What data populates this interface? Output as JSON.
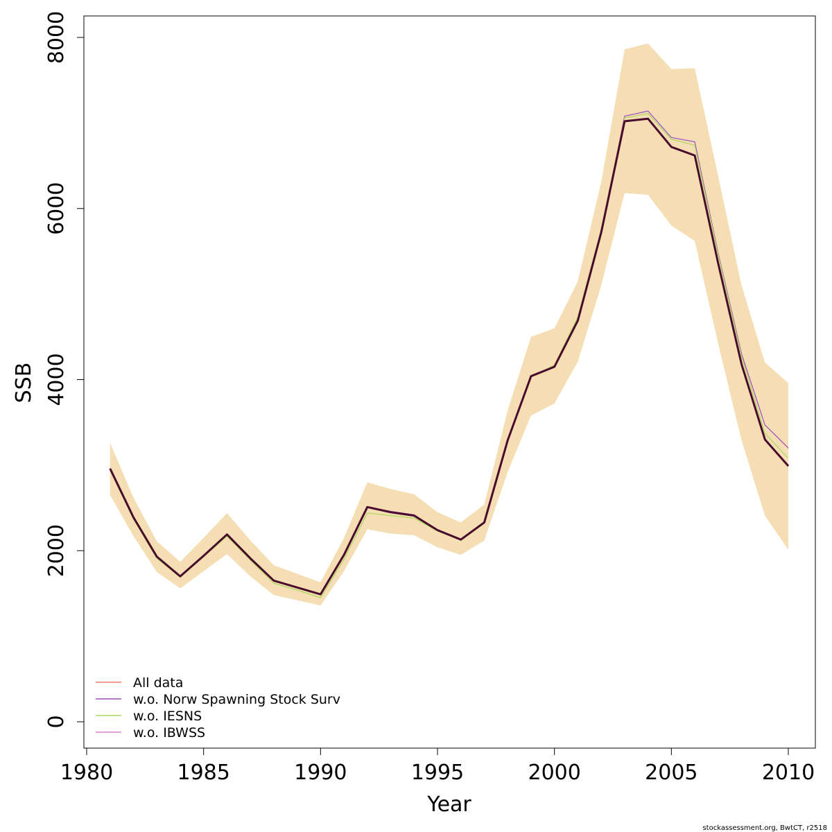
{
  "chart_data": {
    "type": "line",
    "xlabel": "Year",
    "ylabel": "SSB",
    "xlim": [
      1980,
      2010
    ],
    "ylim": [
      0,
      8000
    ],
    "x_ticks": [
      1980,
      1985,
      1990,
      1995,
      2000,
      2005,
      2010
    ],
    "y_ticks": [
      0,
      2000,
      4000,
      6000,
      8000
    ],
    "grid": false,
    "legend_position": "bottom-left",
    "x": [
      1981,
      1982,
      1983,
      1984,
      1985,
      1986,
      1987,
      1988,
      1989,
      1990,
      1991,
      1992,
      1993,
      1994,
      1995,
      1996,
      1997,
      1998,
      1999,
      2000,
      2001,
      2002,
      2003,
      2004,
      2005,
      2006,
      2007,
      2008,
      2009,
      2010
    ],
    "confidence_band": {
      "color": "#f5deb3",
      "lower": [
        2650,
        2170,
        1750,
        1560,
        1760,
        1960,
        1700,
        1480,
        1420,
        1360,
        1760,
        2250,
        2200,
        2180,
        2040,
        1950,
        2120,
        2920,
        3580,
        3720,
        4210,
        5100,
        6180,
        6160,
        5800,
        5620,
        4420,
        3290,
        2410,
        2010
      ],
      "upper": [
        3260,
        2620,
        2110,
        1870,
        2150,
        2440,
        2120,
        1830,
        1730,
        1630,
        2150,
        2800,
        2720,
        2660,
        2450,
        2330,
        2540,
        3640,
        4500,
        4600,
        5150,
        6310,
        7860,
        7930,
        7630,
        7640,
        6380,
        5100,
        4200,
        3960
      ]
    },
    "series": [
      {
        "name": "w.o. Norw Spawning Stock Surv",
        "color": "#9b4dc4",
        "values": [
          2960,
          2390,
          1930,
          1700,
          1940,
          2190,
          1910,
          1650,
          1570,
          1490,
          1950,
          2510,
          2460,
          2420,
          2240,
          2130,
          2330,
          3290,
          4040,
          4160,
          4700,
          5710,
          7080,
          7140,
          6830,
          6780,
          5480,
          4300,
          3470,
          3200
        ]
      },
      {
        "name": "w.o. IESNS",
        "color": "#a8d85c",
        "values": [
          2940,
          2370,
          1910,
          1690,
          1930,
          2170,
          1890,
          1620,
          1540,
          1450,
          1900,
          2440,
          2410,
          2380,
          2230,
          2120,
          2320,
          3280,
          4030,
          4170,
          4730,
          5760,
          7060,
          7110,
          6810,
          6740,
          5460,
          4270,
          3370,
          3080
        ]
      },
      {
        "name": "w.o. IBWSS",
        "color": "#e57ad0",
        "values": [
          2960,
          2390,
          1930,
          1700,
          1940,
          2190,
          1910,
          1650,
          1570,
          1490,
          1950,
          2510,
          2450,
          2410,
          2240,
          2130,
          2330,
          3290,
          4040,
          4150,
          4690,
          5720,
          7020,
          7050,
          6720,
          6620,
          5360,
          4180,
          3300,
          2990
        ]
      },
      {
        "name": "All data",
        "color": "#f4796a",
        "values": [
          2960,
          2390,
          1930,
          1700,
          1940,
          2190,
          1910,
          1650,
          1570,
          1490,
          1950,
          2510,
          2450,
          2410,
          2240,
          2130,
          2330,
          3290,
          4040,
          4150,
          4690,
          5720,
          7020,
          7050,
          6720,
          6620,
          5360,
          4180,
          3300,
          2990
        ]
      }
    ],
    "main_line": {
      "color": "#4a0a2e",
      "values": [
        2960,
        2390,
        1930,
        1700,
        1940,
        2190,
        1910,
        1650,
        1570,
        1490,
        1950,
        2510,
        2450,
        2410,
        2240,
        2130,
        2330,
        3290,
        4040,
        4150,
        4690,
        5720,
        7020,
        7050,
        6720,
        6620,
        5360,
        4180,
        3300,
        2990
      ]
    },
    "legend": [
      {
        "label": "All data",
        "color": "#f4796a"
      },
      {
        "label": "w.o. Norw Spawning Stock Surv",
        "color": "#9b4dc4"
      },
      {
        "label": "w.o. IESNS",
        "color": "#a8d85c"
      },
      {
        "label": "w.o. IBWSS",
        "color": "#e57ad0"
      }
    ]
  },
  "footer": "stockassessment.org, BwtCT, r2518"
}
